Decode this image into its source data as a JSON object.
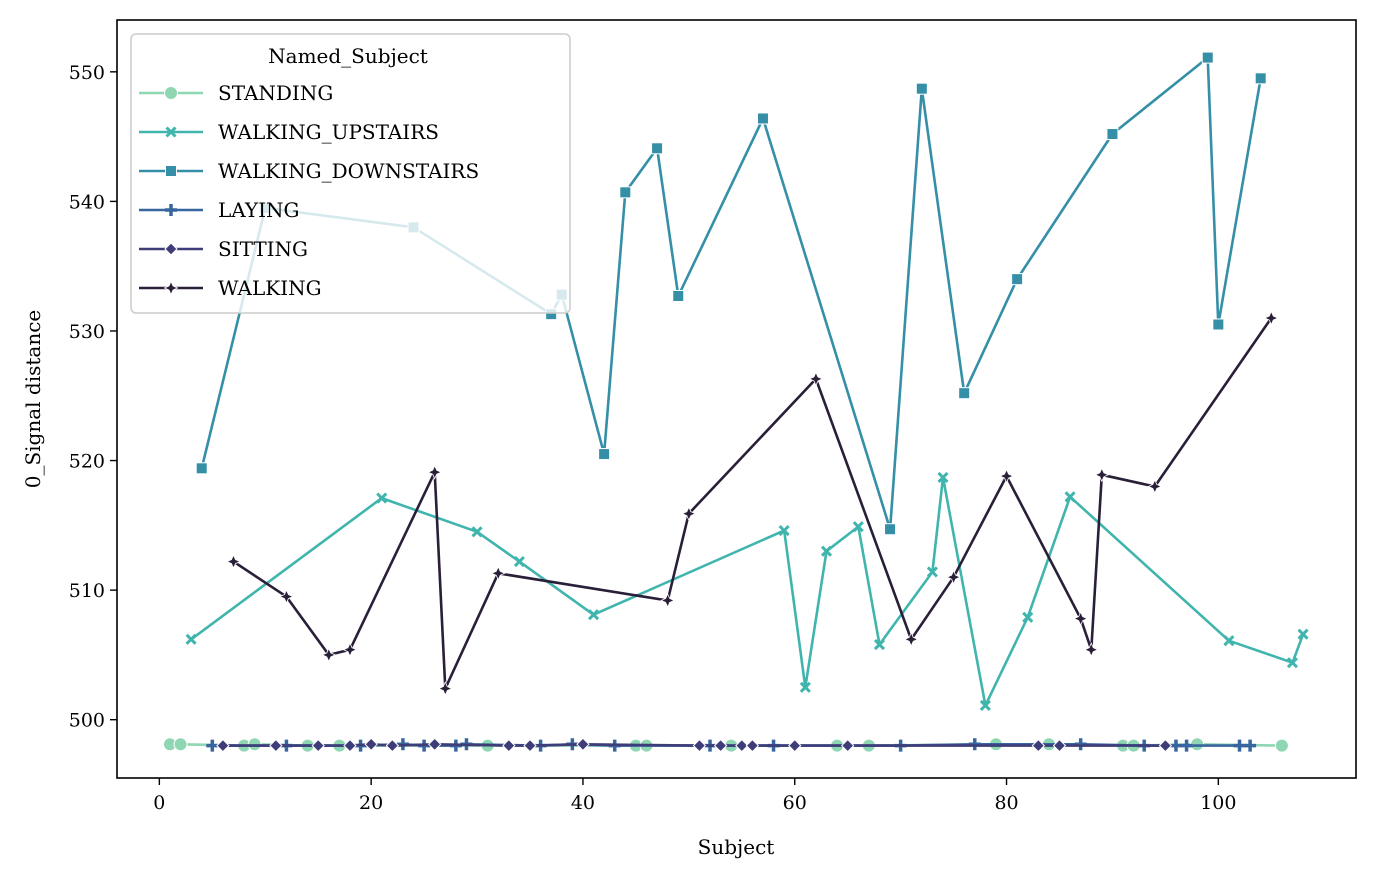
{
  "chart_data": {
    "type": "line",
    "xlabel": "Subject",
    "ylabel": "0_Signal distance",
    "xlim": [
      -4,
      113
    ],
    "ylim": [
      495.5,
      554
    ],
    "xticks": [
      0,
      20,
      40,
      60,
      80,
      100
    ],
    "yticks": [
      500,
      510,
      520,
      530,
      540,
      550
    ],
    "grid": false,
    "legend": {
      "title": "Named_Subject",
      "placement": "top-left"
    },
    "series": [
      {
        "name": "STANDING",
        "color": "#8fd6b2",
        "marker": "circle",
        "x": [
          1,
          2,
          8,
          9,
          14,
          17,
          31,
          45,
          46,
          54,
          64,
          67,
          79,
          84,
          91,
          92,
          98,
          106
        ],
        "y": [
          498.1,
          498.1,
          498,
          498.1,
          498,
          498,
          498,
          498,
          498,
          498,
          498,
          498,
          498.1,
          498.1,
          498,
          498,
          498.1,
          498
        ]
      },
      {
        "name": "WALKING_UPSTAIRS",
        "color": "#40b5ad",
        "marker": "x",
        "x": [
          3,
          21,
          30,
          34,
          41,
          59,
          61,
          63,
          66,
          68,
          73,
          74,
          78,
          82,
          86,
          101,
          107,
          108
        ],
        "y": [
          506.2,
          517.1,
          514.5,
          512.2,
          508.1,
          514.6,
          502.5,
          513,
          514.9,
          505.8,
          511.4,
          518.7,
          501.1,
          507.9,
          517.2,
          506.1,
          504.4,
          506.6
        ]
      },
      {
        "name": "WALKING_DOWNSTAIRS",
        "color": "#348fa7",
        "marker": "square",
        "x": [
          4,
          10,
          24,
          37,
          38,
          42,
          44,
          47,
          49,
          57,
          69,
          72,
          76,
          81,
          90,
          99,
          100,
          104
        ],
        "y": [
          519.4,
          539.5,
          538,
          531.3,
          532.8,
          520.5,
          540.7,
          544.1,
          532.7,
          546.4,
          514.7,
          548.7,
          525.2,
          534,
          545.2,
          551.1,
          530.5,
          549.5
        ]
      },
      {
        "name": "LAYING",
        "color": "#37659e",
        "marker": "plus",
        "x": [
          5,
          12,
          19,
          23,
          25,
          28,
          29,
          36,
          39,
          43,
          52,
          58,
          70,
          77,
          87,
          93,
          96,
          97,
          102,
          103
        ],
        "y": [
          498,
          498,
          498,
          498.1,
          498,
          498,
          498.1,
          498,
          498.1,
          498,
          498,
          498,
          498,
          498.1,
          498.1,
          498,
          498,
          498,
          498,
          498
        ]
      },
      {
        "name": "SITTING",
        "color": "#3e3d79",
        "marker": "diamond",
        "x": [
          6,
          11,
          15,
          18,
          20,
          22,
          26,
          33,
          35,
          40,
          51,
          53,
          55,
          56,
          60,
          65,
          83,
          85,
          95
        ],
        "y": [
          498,
          498,
          498,
          498,
          498.1,
          498,
          498.1,
          498,
          498,
          498.1,
          498,
          498,
          498,
          498,
          498,
          498,
          498,
          498,
          498
        ]
      },
      {
        "name": "WALKING",
        "color": "#2a1f38",
        "marker": "thin-diamond",
        "x": [
          7,
          12,
          16,
          18,
          26,
          27,
          32,
          48,
          50,
          62,
          71,
          75,
          80,
          87,
          88,
          89,
          94,
          105
        ],
        "y": [
          512.2,
          509.5,
          505,
          505.4,
          519.1,
          502.4,
          511.3,
          509.2,
          515.9,
          526.3,
          506.2,
          511,
          518.8,
          507.8,
          505.4,
          518.9,
          518,
          531
        ]
      }
    ]
  }
}
